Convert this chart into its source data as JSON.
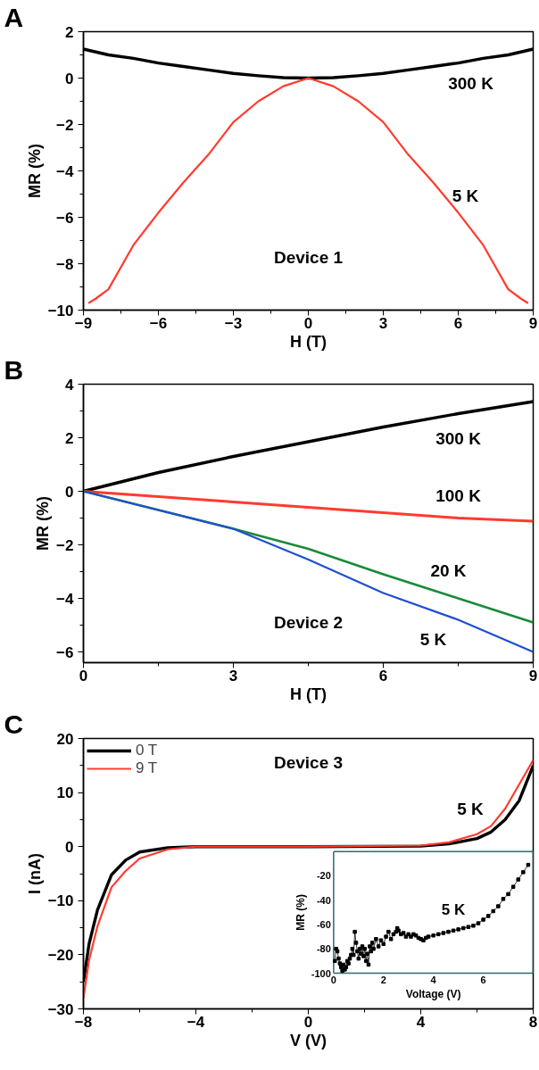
{
  "chart_data": [
    {
      "type": "line",
      "xlabel": "H (T)",
      "ylabel": "MR (%)",
      "xlim": [
        -9,
        9
      ],
      "ylim": [
        -10,
        2
      ],
      "xticks": [
        -9,
        -6,
        -3,
        0,
        3,
        6,
        9
      ],
      "yticks": [
        -10,
        -8,
        -6,
        -4,
        -2,
        0,
        2
      ],
      "series": [
        {
          "name": "300 K",
          "color": "#000000",
          "x": [
            -9,
            -8,
            -7,
            -6,
            -5,
            -4,
            -3,
            -2,
            -1,
            0,
            1,
            2,
            3,
            4,
            5,
            6,
            7,
            8,
            9
          ],
          "values": [
            1.25,
            1.0,
            0.85,
            0.65,
            0.5,
            0.35,
            0.2,
            0.1,
            0.02,
            0,
            0.02,
            0.1,
            0.2,
            0.35,
            0.5,
            0.65,
            0.85,
            1.0,
            1.25
          ]
        },
        {
          "name": "5 K",
          "color": "#ff3b2f",
          "x": [
            -8.8,
            -8.5,
            -8,
            -7,
            -6,
            -5,
            -4,
            -3,
            -2,
            -1,
            0,
            1,
            2,
            3,
            4,
            5,
            6,
            7,
            8,
            8.5,
            8.8
          ],
          "values": [
            -9.7,
            -9.5,
            -9.1,
            -7.2,
            -5.8,
            -4.5,
            -3.3,
            -1.9,
            -1.0,
            -0.35,
            0,
            -0.35,
            -1.0,
            -1.9,
            -3.3,
            -4.5,
            -5.8,
            -7.2,
            -9.1,
            -9.5,
            -9.7
          ]
        }
      ],
      "annotations": [
        "A",
        "Device 1"
      ]
    },
    {
      "type": "line",
      "xlabel": "H (T)",
      "ylabel": "MR (%)",
      "xlim": [
        0,
        9
      ],
      "ylim": [
        -6.4,
        4
      ],
      "xticks": [
        0,
        3,
        6,
        9
      ],
      "yticks": [
        -6,
        -4,
        -2,
        0,
        2,
        4
      ],
      "series": [
        {
          "name": "300 K",
          "color": "#000000",
          "x": [
            0,
            1.5,
            3,
            4.5,
            6,
            7.5,
            9
          ],
          "values": [
            0,
            0.7,
            1.3,
            1.85,
            2.4,
            2.9,
            3.35
          ]
        },
        {
          "name": "100 K",
          "color": "#ff3b2f",
          "x": [
            0,
            1.5,
            3,
            4.5,
            6,
            7.5,
            9
          ],
          "values": [
            0,
            -0.2,
            -0.4,
            -0.6,
            -0.8,
            -1.0,
            -1.12
          ]
        },
        {
          "name": "20 K",
          "color": "#1a8a3a",
          "x": [
            0,
            1.5,
            3,
            4.5,
            6,
            7.5,
            9
          ],
          "values": [
            0,
            -0.7,
            -1.4,
            -2.15,
            -3.1,
            -4.0,
            -4.9
          ]
        },
        {
          "name": "5 K",
          "color": "#1f4fd0",
          "x": [
            0,
            1.5,
            3,
            4.5,
            6,
            7.5,
            9
          ],
          "values": [
            0,
            -0.7,
            -1.4,
            -2.55,
            -3.8,
            -4.8,
            -6.0
          ]
        }
      ],
      "annotations": [
        "B",
        "Device 2"
      ]
    },
    {
      "type": "line",
      "xlabel": "V (V)",
      "ylabel": "I (nA)",
      "xlim": [
        -8,
        8
      ],
      "ylim": [
        -30,
        20
      ],
      "xticks": [
        -8,
        -4,
        0,
        4,
        8
      ],
      "yticks": [
        -30,
        -20,
        -10,
        0,
        10,
        20
      ],
      "legend": "top left",
      "series": [
        {
          "name": "0 T",
          "color": "#000000",
          "x": [
            -8,
            -7.8,
            -7.5,
            -7,
            -6.5,
            -6,
            -5,
            -4,
            0,
            4,
            5,
            6,
            6.5,
            7,
            7.5,
            8
          ],
          "values": [
            -25,
            -18,
            -11.7,
            -5.2,
            -2.5,
            -1,
            -0.2,
            0,
            0,
            0.1,
            0.5,
            1.5,
            2.7,
            5,
            8.5,
            15
          ]
        },
        {
          "name": "9 T",
          "color": "#ff3b2f",
          "x": [
            -8,
            -7.8,
            -7.5,
            -7,
            -6.5,
            -6,
            -5,
            -4,
            0,
            4,
            5,
            6,
            6.5,
            7,
            7.5,
            8
          ],
          "values": [
            -28,
            -21,
            -14.7,
            -7.5,
            -4.5,
            -2.2,
            -0.5,
            0,
            0,
            0.2,
            0.8,
            2.3,
            3.8,
            7,
            11.5,
            16
          ]
        }
      ],
      "annotations": [
        "C",
        "Device 3",
        "5 K"
      ]
    },
    {
      "type": "line",
      "xlabel": "Voltage (V)",
      "ylabel": "MR (%)",
      "xlim": [
        0,
        8
      ],
      "ylim": [
        -100,
        0
      ],
      "xticks": [
        0,
        2,
        4,
        6
      ],
      "yticks": [
        -100,
        -80,
        -60,
        -40,
        -20
      ],
      "marker": "square",
      "series": [
        {
          "color": "#000000",
          "x": [
            0.05,
            0.1,
            0.15,
            0.2,
            0.25,
            0.3,
            0.35,
            0.4,
            0.45,
            0.5,
            0.55,
            0.6,
            0.65,
            0.7,
            0.75,
            0.8,
            0.85,
            0.9,
            0.95,
            1.0,
            1.05,
            1.1,
            1.15,
            1.2,
            1.25,
            1.3,
            1.35,
            1.4,
            1.45,
            1.5,
            1.55,
            1.6,
            1.7,
            1.8,
            1.9,
            2.0,
            2.1,
            2.2,
            2.3,
            2.4,
            2.5,
            2.55,
            2.6,
            2.7,
            2.8,
            2.9,
            3.0,
            3.1,
            3.2,
            3.3,
            3.4,
            3.5,
            3.6,
            3.7,
            3.8,
            4.0,
            4.2,
            4.4,
            4.6,
            4.8,
            5.0,
            5.2,
            5.4,
            5.6,
            5.8,
            6.0,
            6.2,
            6.4,
            6.6,
            6.8,
            7.0,
            7.2,
            7.4,
            7.6,
            7.8
          ],
          "values": [
            -90,
            -80,
            -82,
            -88,
            -92,
            -95,
            -98,
            -93,
            -97,
            -95,
            -90,
            -92,
            -88,
            -85,
            -80,
            -85,
            -66,
            -75,
            -82,
            -88,
            -80,
            -84,
            -78,
            -86,
            -80,
            -90,
            -84,
            -93,
            -78,
            -82,
            -75,
            -80,
            -72,
            -78,
            -73,
            -76,
            -70,
            -66,
            -72,
            -68,
            -66,
            -63,
            -65,
            -68,
            -67,
            -70,
            -68,
            -70,
            -68,
            -69,
            -71,
            -72,
            -73,
            -71,
            -70,
            -69,
            -68,
            -67,
            -66,
            -65,
            -64,
            -63,
            -62,
            -61,
            -59,
            -56,
            -53,
            -49,
            -45,
            -39,
            -35,
            -29,
            -23,
            -17,
            -11
          ]
        }
      ],
      "annotations": [
        "5 K"
      ]
    }
  ]
}
